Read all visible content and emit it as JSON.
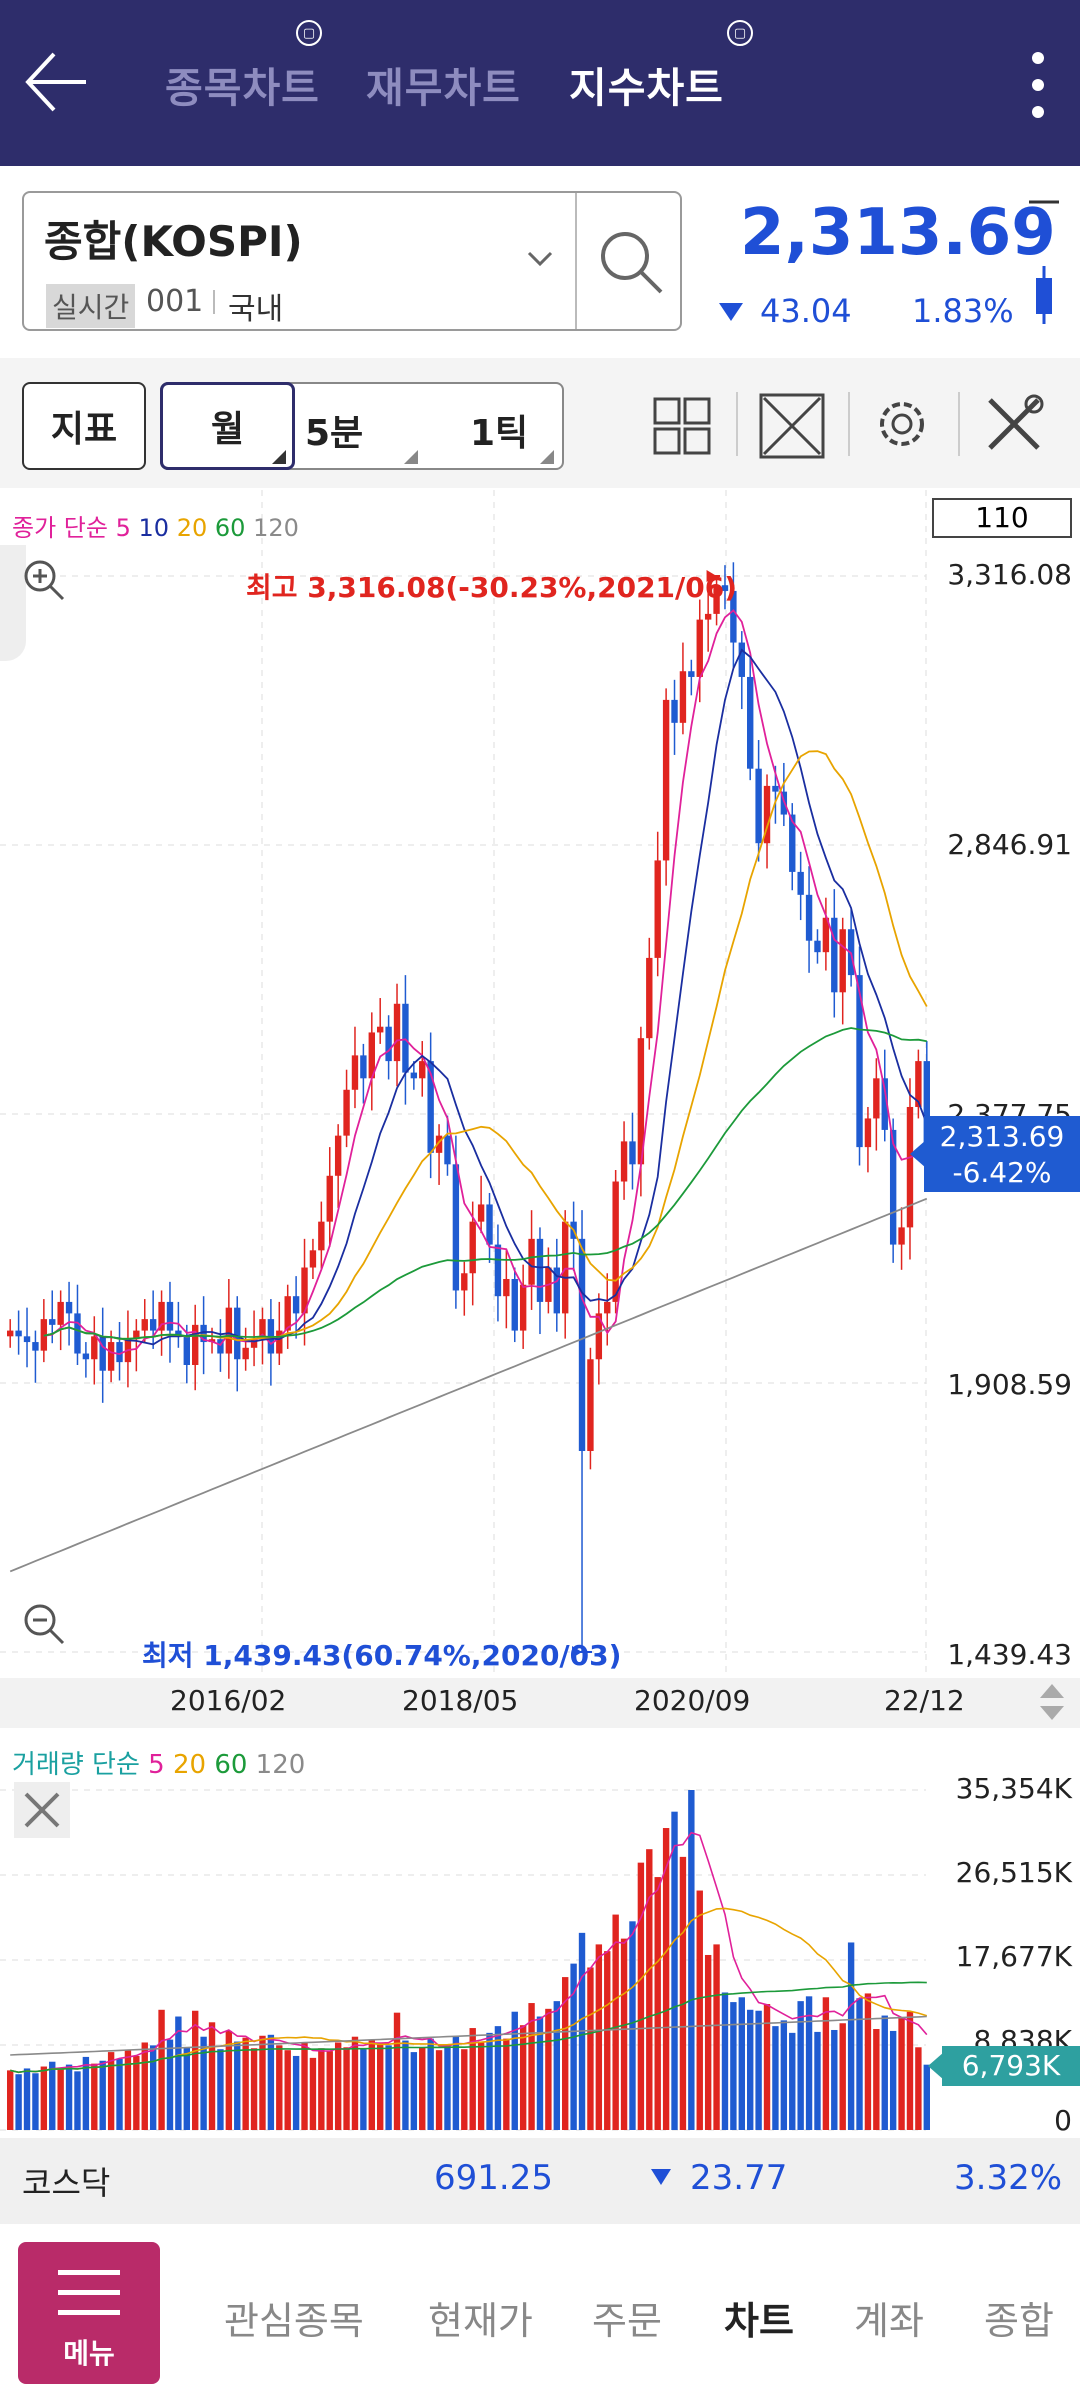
{
  "header": {
    "tabs": [
      {
        "label": "종목차트",
        "active": false
      },
      {
        "label": "재무차트",
        "active": false
      },
      {
        "label": "지수차트",
        "active": true
      }
    ]
  },
  "search": {
    "name": "종합(KOSPI)",
    "realtime_chip": "실시간",
    "code": "001",
    "market": "국내"
  },
  "quote": {
    "price": "2,313.69",
    "change": "43.04",
    "change_pct": "1.83%",
    "color": "#1f4fd6"
  },
  "toolbar": {
    "indicator": "지표",
    "periods": [
      "월",
      "5분",
      "1틱"
    ],
    "count": "110"
  },
  "price_legend": {
    "prefix": "종가 단순",
    "ma": [
      {
        "label": "5",
        "color": "#e0219a"
      },
      {
        "label": "10",
        "color": "#1a2ea0"
      },
      {
        "label": "20",
        "color": "#e8a400"
      },
      {
        "label": "60",
        "color": "#1c9a3a"
      },
      {
        "label": "120",
        "color": "#8a8a8a"
      }
    ]
  },
  "annotations": {
    "high": "최고 3,316.08(-30.23%,2021/06)",
    "low": "최저 1,439.43(60.74%,2020/03)"
  },
  "price_axis": [
    "3,316.08",
    "2,846.91",
    "2,377.75",
    "1,908.59",
    "1,439.43"
  ],
  "current_tag": {
    "price": "2,313.69",
    "pct": "-6.42%"
  },
  "x_axis": [
    "2016/02",
    "2018/05",
    "2020/09",
    "22/12"
  ],
  "volume_legend": {
    "prefix": "거래량 단순",
    "ma": [
      {
        "label": "5",
        "color": "#e0219a"
      },
      {
        "label": "20",
        "color": "#e8a400"
      },
      {
        "label": "60",
        "color": "#1c9a3a"
      },
      {
        "label": "120",
        "color": "#8a8a8a"
      }
    ]
  },
  "volume_axis": [
    "35,354K",
    "26,515K",
    "17,677K",
    "8,838K",
    "0"
  ],
  "volume_tag": "6,793K",
  "kosdaq": {
    "name": "코스닥",
    "price": "691.25",
    "change": "23.77",
    "pct": "3.32%"
  },
  "bottom_nav": {
    "menu_label": "메뉴",
    "items": [
      "관심종목",
      "현재가",
      "주문",
      "차트",
      "계좌",
      "종합"
    ],
    "active": "차트"
  },
  "chart_data": [
    {
      "type": "candlestick",
      "title": "종합(KOSPI) 월봉",
      "x_range": [
        "2014/06",
        "2022/12"
      ],
      "ylim": [
        1439.43,
        3316.08
      ],
      "x_ticks": [
        "2016/02",
        "2018/05",
        "2020/09",
        "22/12"
      ],
      "y_ticks": [
        3316.08,
        2846.91,
        2377.75,
        1908.59,
        1439.43
      ],
      "grid": true,
      "closes": [
        2000,
        1990,
        1980,
        1965,
        2020,
        2010,
        2050,
        2030,
        1960,
        1950,
        1990,
        1930,
        1980,
        1945,
        1985,
        2000,
        2020,
        2000,
        2050,
        2000,
        1990,
        1940,
        2010,
        1980,
        1985,
        1960,
        2040,
        1950,
        1970,
        1985,
        2020,
        1960,
        2000,
        2060,
        2030,
        2110,
        2140,
        2190,
        2270,
        2340,
        2420,
        2480,
        2440,
        2520,
        2530,
        2470,
        2570,
        2450,
        2440,
        2470,
        2310,
        2340,
        2290,
        2070,
        2100,
        2190,
        2220,
        2150,
        2060,
        2090,
        2000,
        2080,
        2160,
        2050,
        2110,
        2030,
        2190,
        2160,
        1790,
        1950,
        2030,
        2050,
        2260,
        2330,
        2290,
        2510,
        2650,
        2820,
        3100,
        3060,
        3150,
        3140,
        3240,
        3250,
        3300,
        3290,
        3200,
        3140,
        2980,
        2850,
        2950,
        2940,
        2900,
        2800,
        2760,
        2680,
        2660,
        2720,
        2590,
        2700,
        2620,
        2320,
        2370,
        2440,
        2350,
        2150,
        2180,
        2390,
        2470,
        2314
      ],
      "high": {
        "value": 3316.08,
        "date": "2021/06",
        "pct": "-30.23%"
      },
      "low": {
        "value": 1439.43,
        "date": "2020/03",
        "pct": "60.74%"
      },
      "last": {
        "value": 2313.69,
        "pct": "-6.42%"
      }
    },
    {
      "type": "bar",
      "title": "거래량",
      "ylim": [
        0,
        35354
      ],
      "y_ticks": [
        35354,
        26515,
        17677,
        8838,
        0
      ],
      "unit": "K",
      "values": [
        6200,
        5800,
        6400,
        5900,
        6600,
        7100,
        6300,
        6800,
        6100,
        7600,
        6900,
        7200,
        8100,
        7400,
        8300,
        7700,
        9100,
        8800,
        12500,
        9400,
        11800,
        8600,
        12400,
        9700,
        11200,
        8400,
        10300,
        9200,
        9600,
        8500,
        9800,
        9900,
        8800,
        8300,
        7700,
        9100,
        7500,
        8500,
        8200,
        9100,
        8600,
        9700,
        8400,
        9400,
        9100,
        8800,
        12200,
        9300,
        8100,
        8600,
        9500,
        8300,
        8900,
        9700,
        8400,
        10600,
        9200,
        10100,
        10800,
        9500,
        12300,
        10900,
        13200,
        11800,
        12600,
        13400,
        15900,
        17300,
        20500,
        16900,
        19300,
        18600,
        22400,
        19900,
        21700,
        27800,
        29200,
        26300,
        31400,
        33100,
        28400,
        35354,
        24900,
        18200,
        19300,
        14300,
        13300,
        13800,
        12500,
        12400,
        13100,
        10800,
        11400,
        10100,
        13400,
        13900,
        10200,
        13800,
        10400,
        11100,
        19500,
        13700,
        14200,
        10500,
        11900,
        10300,
        11600,
        12300,
        8600,
        6793
      ]
    }
  ]
}
